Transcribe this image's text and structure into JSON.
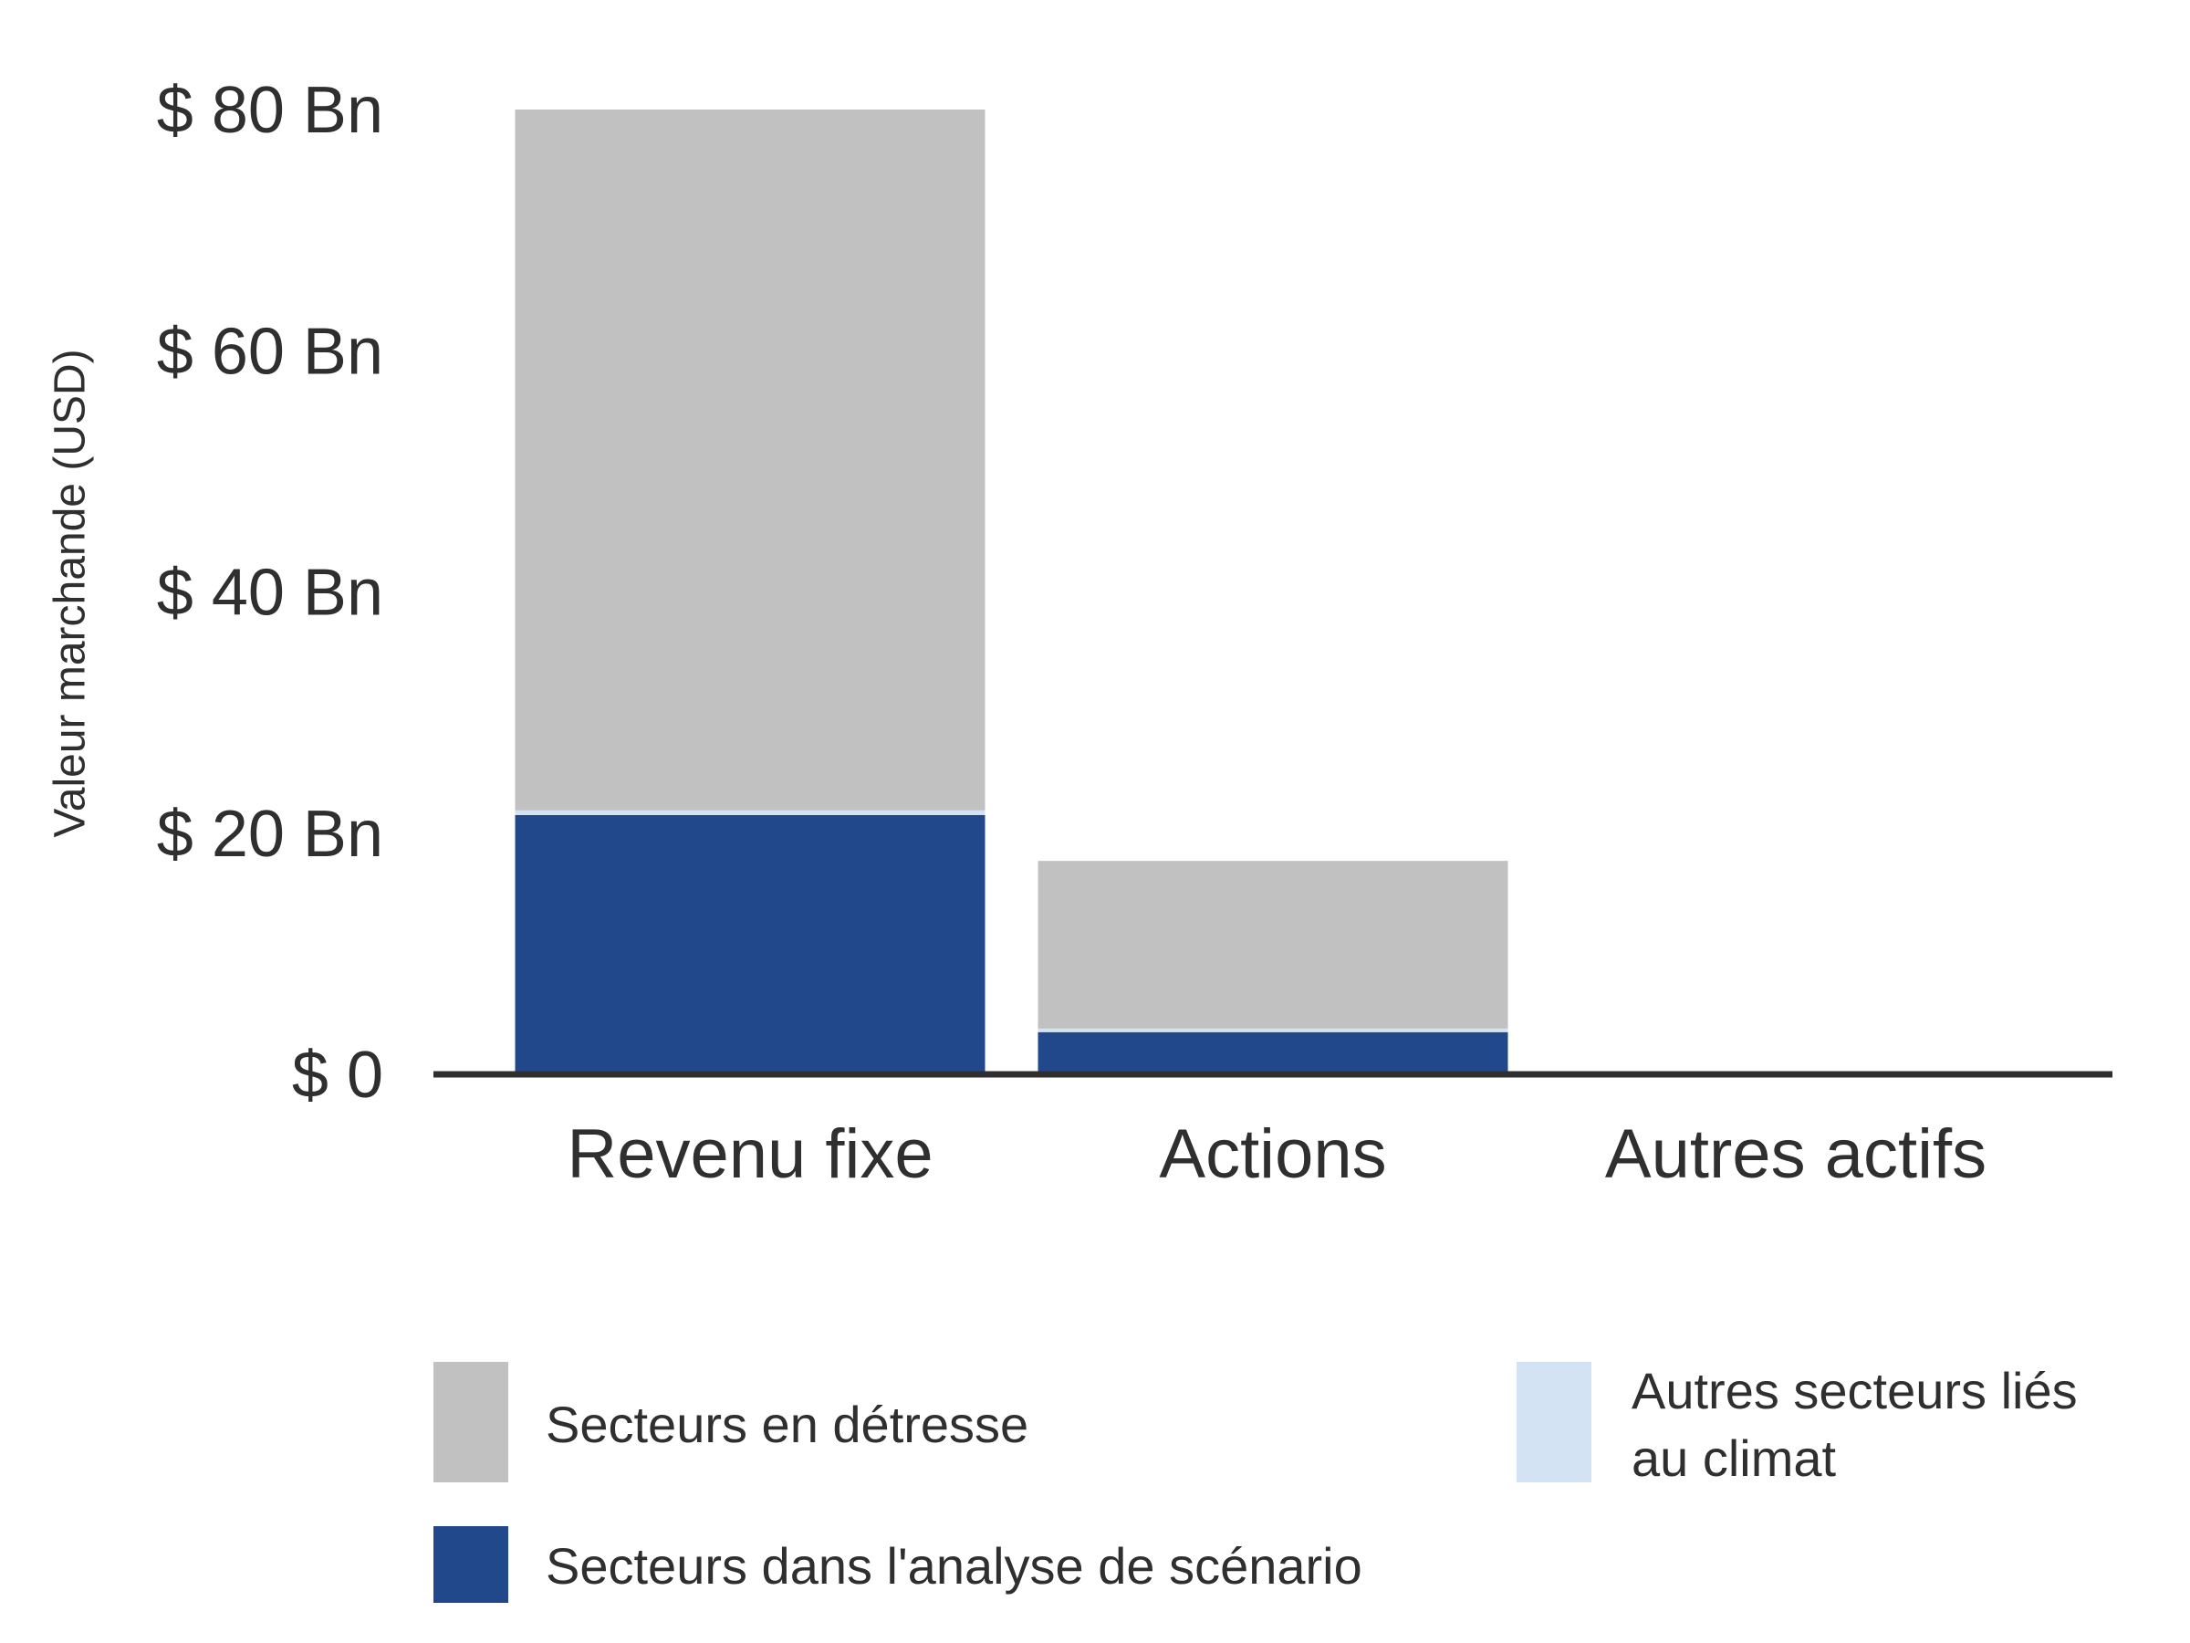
{
  "chart_data": {
    "type": "bar",
    "stacked": true,
    "title": "",
    "xlabel": "",
    "ylabel": "Valeur marchande (USD)",
    "ylim": [
      0,
      80
    ],
    "yticks": [
      0,
      20,
      40,
      60,
      80
    ],
    "ytick_labels": [
      "$ 0",
      "$ 20 Bn",
      "$ 40 Bn",
      "$ 60 Bn",
      "$ 80 Bn"
    ],
    "grid": false,
    "legend_position": "bottom",
    "categories": [
      "Revenu fixe",
      "Actions",
      "Autres actifs"
    ],
    "series": [
      {
        "name": "Secteurs dans l'analyse de scénario",
        "color": "#21488a",
        "values": [
          21.5,
          3.5,
          0
        ]
      },
      {
        "name": "Autres secteurs liés au climat",
        "color": "#d4e3f3",
        "values": [
          0.4,
          0.3,
          0
        ]
      },
      {
        "name": "Secteurs en détresse",
        "color": "#c1c1c1",
        "values": [
          58.1,
          13.9,
          0
        ]
      }
    ],
    "legend": [
      {
        "series": 2,
        "label": "Secteurs en détresse",
        "color": "#c1c1c1"
      },
      {
        "series": 1,
        "label": "Autres secteurs liés au climat",
        "lines": [
          "Autres secteurs liés",
          "au climat"
        ],
        "color": "#d4e3f3"
      },
      {
        "series": 0,
        "label": "Secteurs dans l'analyse de scénario",
        "color": "#21488a"
      }
    ],
    "axis_color": "#2f2f2f"
  }
}
